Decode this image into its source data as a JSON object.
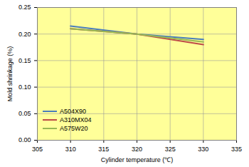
{
  "chart_data": {
    "type": "line",
    "x_label": "Cylinder temperature (℃)",
    "y_label": "Mold shrinkage (%)",
    "x": [
      310,
      320,
      330
    ],
    "series": [
      {
        "name": "A504X90",
        "color": "#4A7EBB",
        "values": [
          0.215,
          0.2,
          0.19
        ]
      },
      {
        "name": "A310MX04",
        "color": "#BE4B48",
        "values": [
          0.21,
          0.2,
          0.18
        ]
      },
      {
        "name": "A575W20",
        "color": "#98B954",
        "values": [
          0.21,
          0.2,
          0.185
        ]
      }
    ],
    "xlim": [
      305,
      335
    ],
    "xticks": [
      305,
      310,
      315,
      320,
      325,
      330,
      335
    ],
    "ylim": [
      0,
      0.25
    ],
    "yticks": [
      {
        "value": 0,
        "label": "0.00"
      },
      0.05,
      {
        "value": 0.1,
        "label": "0.10"
      },
      0.15,
      {
        "value": 0.2,
        "label": "0.20"
      },
      0.25
    ],
    "grid": true,
    "legend": "lower left"
  }
}
